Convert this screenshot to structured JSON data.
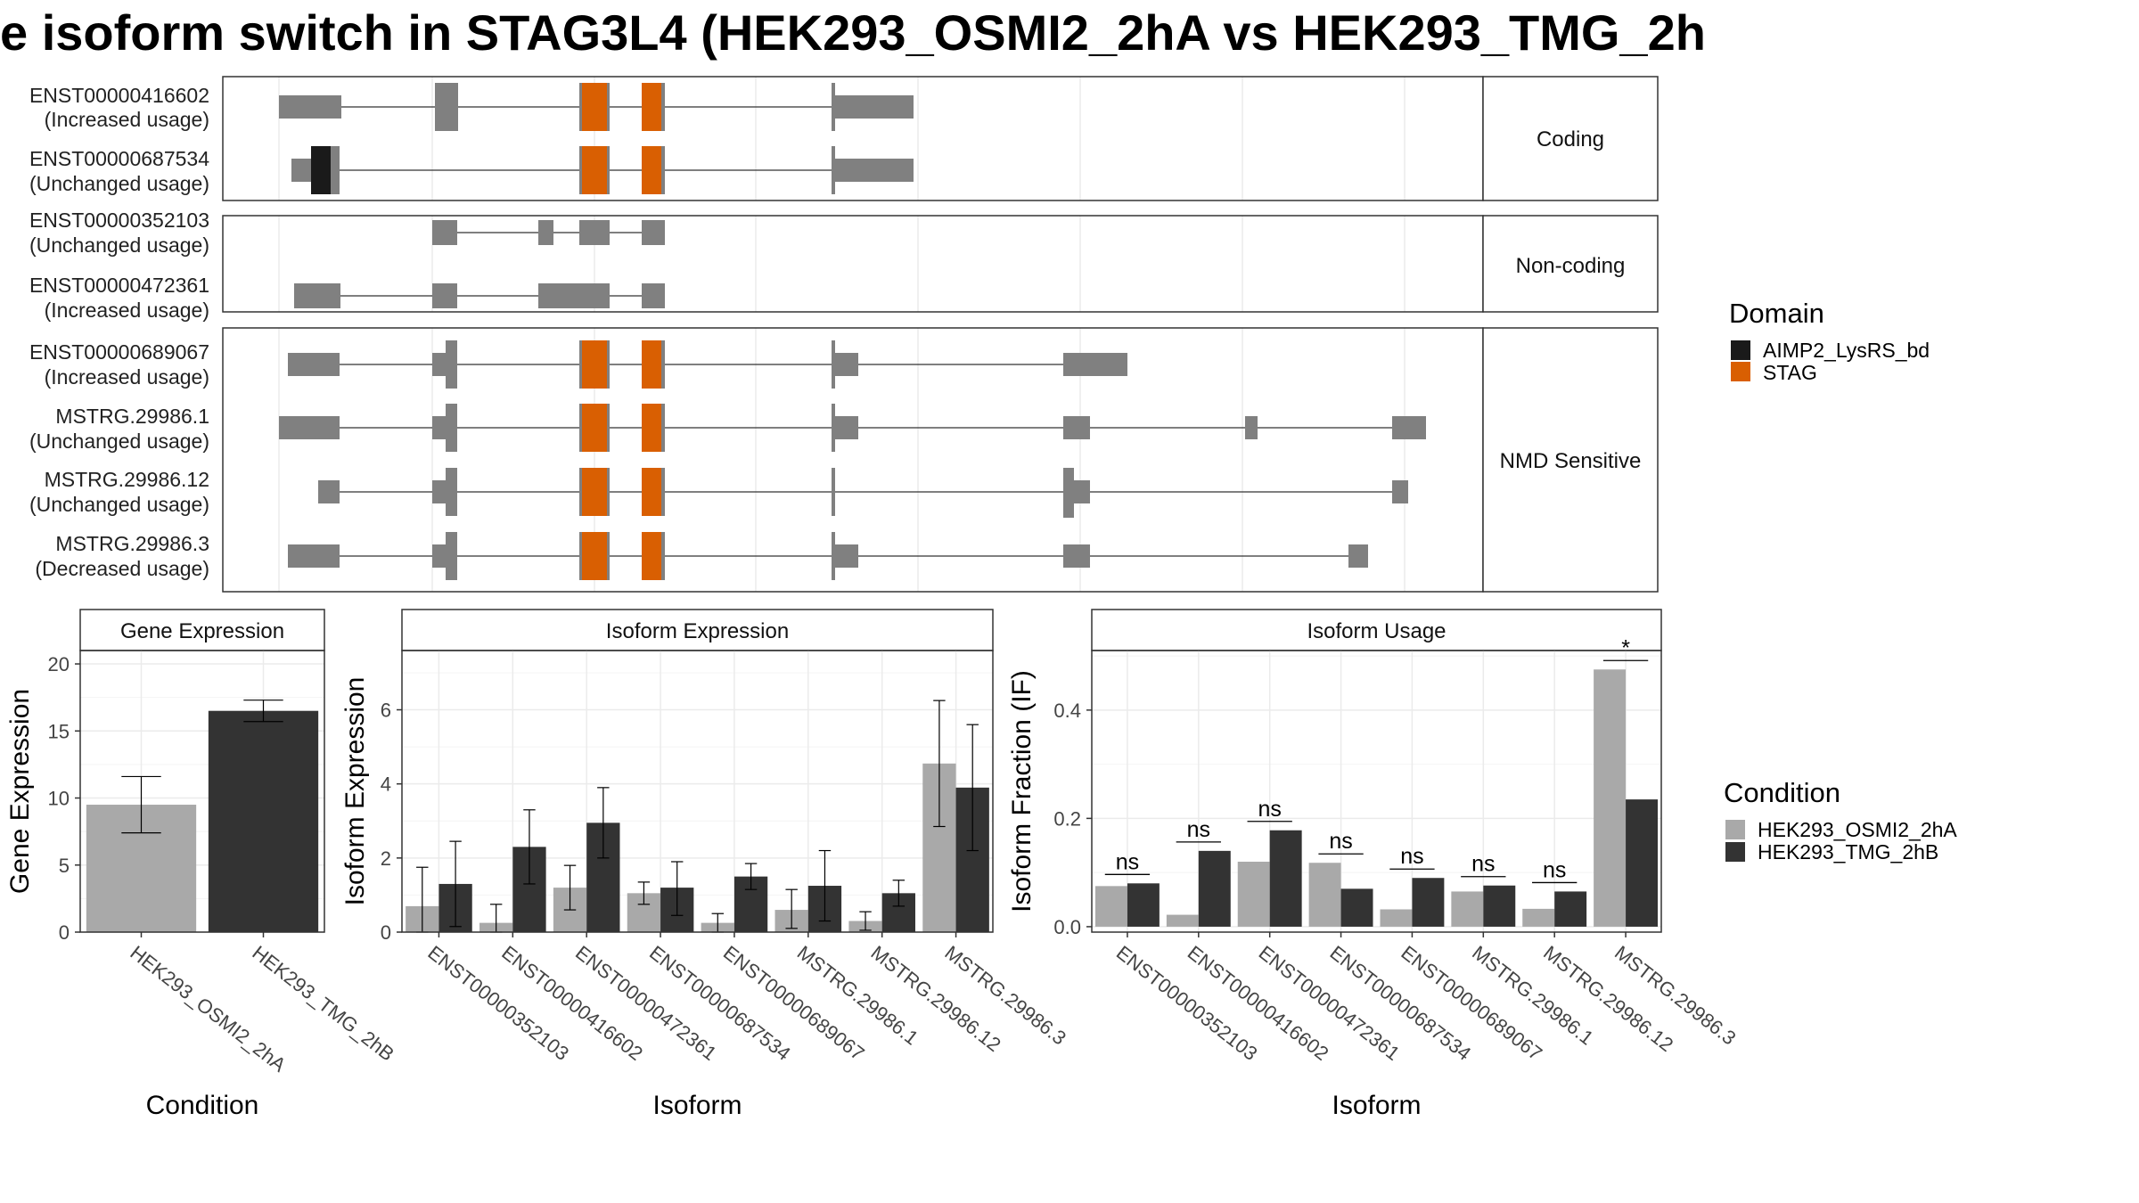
{
  "title": "e isoform switch in STAG3L4 (HEK293_OSMI2_2hA vs HEK293_TMG_2h",
  "colors": {
    "exon": "#808080",
    "domain_AIMP2_LysRS_bd": "#1a1a1a",
    "domain_STAG": "#d95f02",
    "cond_OSMI2": "#a9a9a9",
    "cond_TMG": "#333333"
  },
  "structure": {
    "groups": [
      {
        "label": "Coding",
        "isoforms": [
          {
            "id": "ENST00000416602",
            "note": "(Increased usage)"
          },
          {
            "id": "ENST00000687534",
            "note": "(Unchanged usage)"
          }
        ]
      },
      {
        "label": "Non-coding",
        "isoforms": [
          {
            "id": "ENST00000352103",
            "note": "(Unchanged usage)"
          },
          {
            "id": "ENST00000472361",
            "note": "(Increased usage)"
          }
        ]
      },
      {
        "label": "NMD Sensitive",
        "isoforms": [
          {
            "id": "ENST00000689067",
            "note": "(Increased usage)"
          },
          {
            "id": "MSTRG.29986.1",
            "note": "(Unchanged usage)"
          },
          {
            "id": "MSTRG.29986.12",
            "note": "(Unchanged usage)"
          },
          {
            "id": "MSTRG.29986.3",
            "note": "(Decreased usage)"
          }
        ]
      }
    ]
  },
  "legend_domain": {
    "title": "Domain",
    "items": [
      {
        "label": "AIMP2_LysRS_bd",
        "color": "#1a1a1a"
      },
      {
        "label": "STAG",
        "color": "#d95f02"
      }
    ]
  },
  "legend_condition": {
    "title": "Condition",
    "items": [
      {
        "label": "HEK293_OSMI2_2hA",
        "color": "#a9a9a9"
      },
      {
        "label": "HEK293_TMG_2hB",
        "color": "#333333"
      }
    ]
  },
  "chart_data": [
    {
      "type": "bar",
      "title": "Gene Expression",
      "xlabel": "Condition",
      "ylabel": "Gene Expression",
      "ylim": [
        0,
        21
      ],
      "yticks": [
        0,
        5,
        10,
        15,
        20
      ],
      "categories": [
        "HEK293_OSMI2_2hA",
        "HEK293_TMG_2hB"
      ],
      "values": [
        9.5,
        16.5
      ],
      "errors": [
        [
          7.4,
          11.6
        ],
        [
          15.7,
          17.3
        ]
      ]
    },
    {
      "type": "bar",
      "title": "Isoform Expression",
      "xlabel": "Isoform",
      "ylabel": "Isoform Expression",
      "ylim": [
        0,
        7.6
      ],
      "yticks": [
        0,
        2,
        4,
        6
      ],
      "categories": [
        "ENST00000352103",
        "ENST00000416602",
        "ENST00000472361",
        "ENST00000687534",
        "ENST00000689067",
        "MSTRG.29986.1",
        "MSTRG.29986.12",
        "MSTRG.29986.3"
      ],
      "series": [
        {
          "name": "HEK293_OSMI2_2hA",
          "values": [
            0.7,
            0.25,
            1.2,
            1.05,
            0.25,
            0.6,
            0.3,
            4.55
          ],
          "errors": [
            [
              0.0,
              1.75
            ],
            [
              0.0,
              0.75
            ],
            [
              0.6,
              1.8
            ],
            [
              0.75,
              1.35
            ],
            [
              0.0,
              0.5
            ],
            [
              0.1,
              1.15
            ],
            [
              0.05,
              0.55
            ],
            [
              2.85,
              6.25
            ]
          ]
        },
        {
          "name": "HEK293_TMG_2hB",
          "values": [
            1.3,
            2.3,
            2.95,
            1.2,
            1.5,
            1.25,
            1.05,
            3.9
          ],
          "errors": [
            [
              0.15,
              2.45
            ],
            [
              1.3,
              3.3
            ],
            [
              2.0,
              3.9
            ],
            [
              0.45,
              1.9
            ],
            [
              1.15,
              1.85
            ],
            [
              0.3,
              2.2
            ],
            [
              0.7,
              1.4
            ],
            [
              2.2,
              5.6
            ]
          ]
        }
      ]
    },
    {
      "type": "bar",
      "title": "Isoform Usage",
      "xlabel": "Isoform",
      "ylabel": "Isoform Fraction (IF)",
      "ylim": [
        -0.01,
        0.51
      ],
      "yticks": [
        0.0,
        0.2,
        0.4
      ],
      "ytick_labels": [
        "0.0",
        "0.2",
        "0.4"
      ],
      "categories": [
        "ENST00000352103",
        "ENST00000416602",
        "ENST00000472361",
        "ENST00000687534",
        "ENST00000689067",
        "MSTRG.29986.1",
        "MSTRG.29986.12",
        "MSTRG.29986.3"
      ],
      "series": [
        {
          "name": "HEK293_OSMI2_2hA",
          "values": [
            0.075,
            0.022,
            0.12,
            0.118,
            0.032,
            0.065,
            0.033,
            0.475
          ]
        },
        {
          "name": "HEK293_TMG_2hB",
          "values": [
            0.08,
            0.14,
            0.178,
            0.07,
            0.09,
            0.076,
            0.065,
            0.235
          ]
        }
      ],
      "significance": [
        "ns",
        "ns",
        "ns",
        "ns",
        "ns",
        "ns",
        "ns",
        "*"
      ]
    }
  ]
}
